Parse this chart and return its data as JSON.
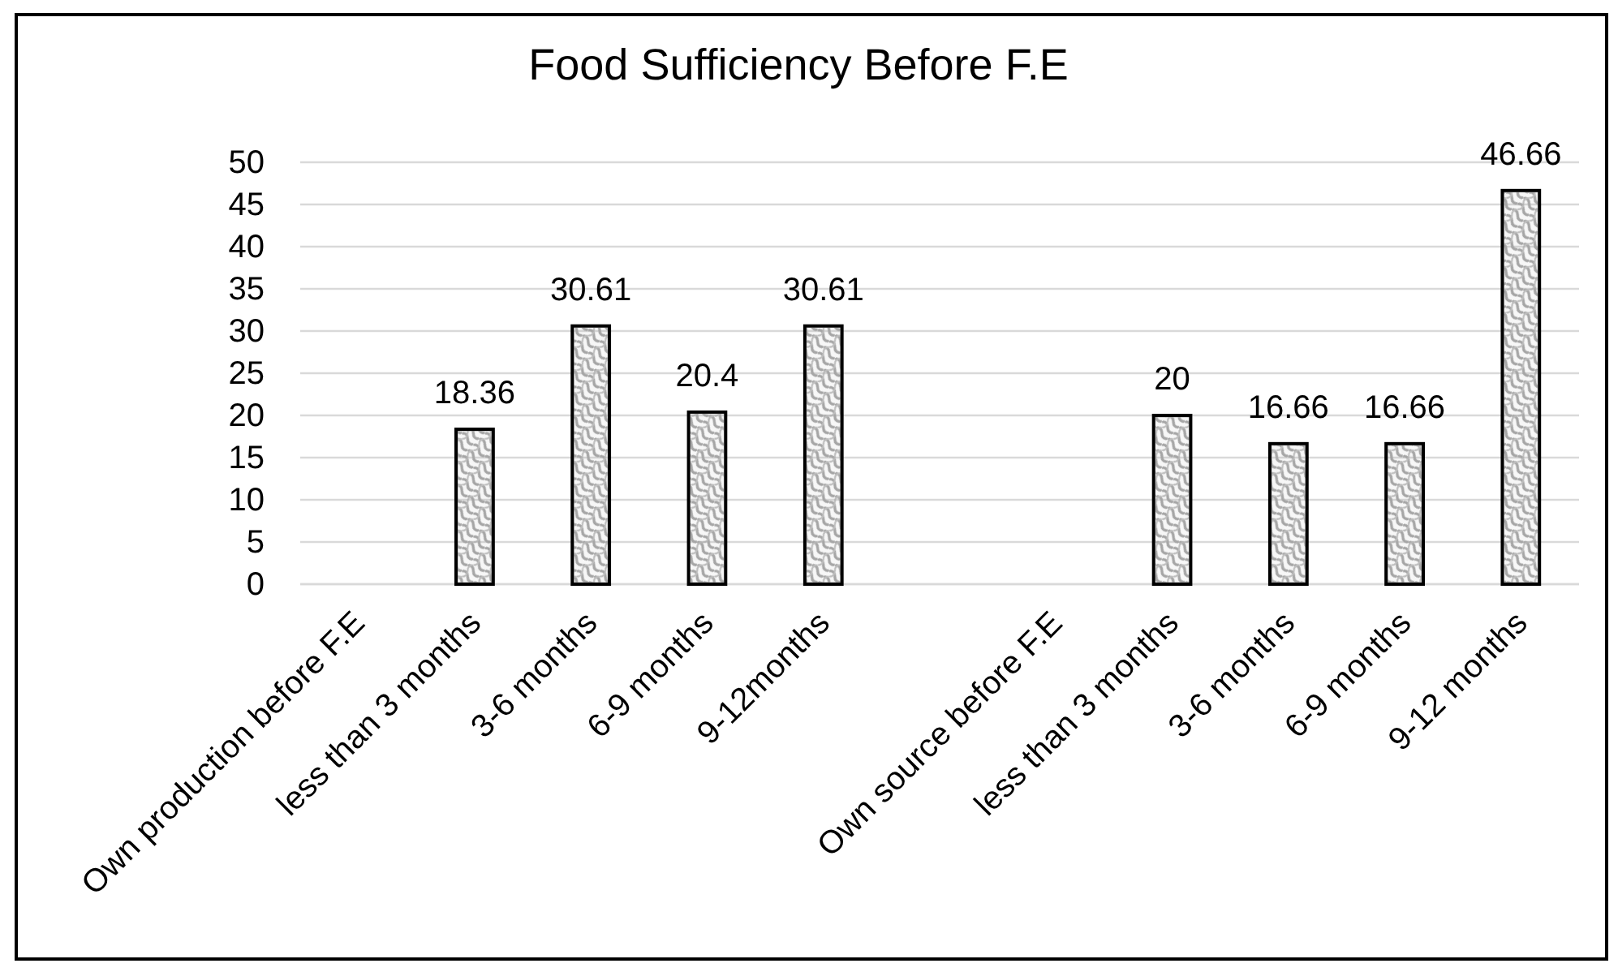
{
  "chart_data": {
    "type": "bar",
    "title": "Food Sufficiency Before F.E",
    "categories": [
      "Own production before F.E",
      "less than 3 months",
      "3-6 months",
      "6-9 months",
      "9-12months",
      null,
      "Own source before F.E",
      "less than 3 months",
      "3-6 months",
      "6-9 months",
      "9-12 months"
    ],
    "values": [
      null,
      18.36,
      30.61,
      20.4,
      30.61,
      null,
      null,
      20,
      16.66,
      16.66,
      46.66
    ],
    "color": "#a6a6a6",
    "ylim": [
      0,
      50
    ],
    "yticks": [
      0,
      5,
      10,
      15,
      20,
      25,
      30,
      35,
      40,
      45,
      50
    ],
    "grid": "y",
    "data_labels": true
  }
}
